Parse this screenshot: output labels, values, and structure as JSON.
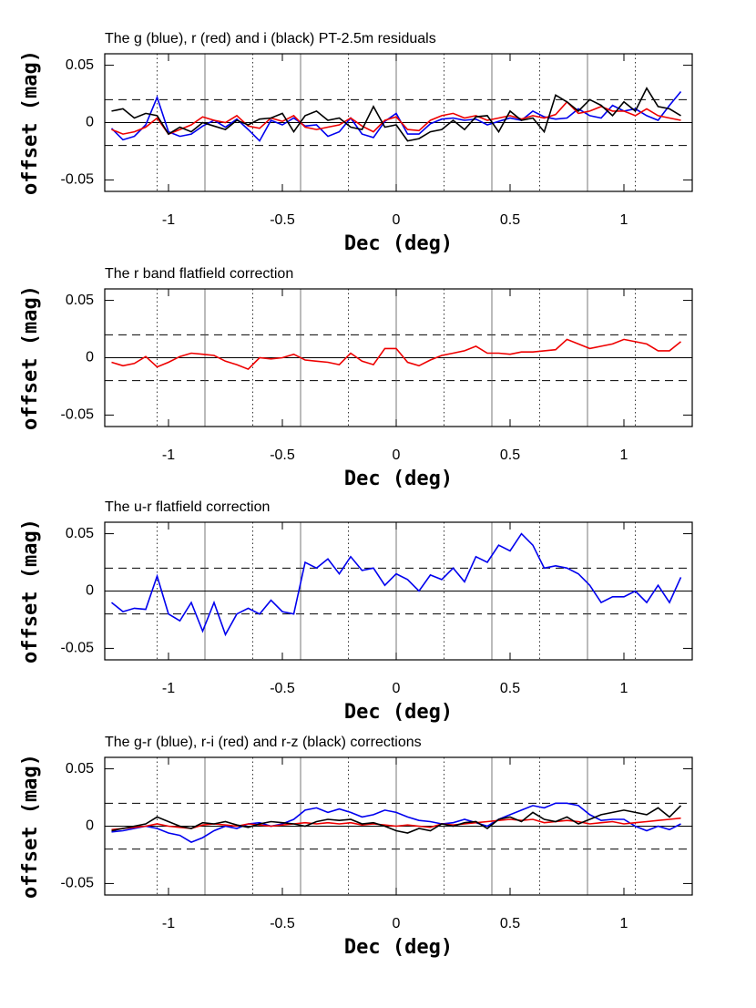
{
  "chart_data": [
    {
      "type": "line",
      "title": "The g (blue), r (red) and i (black) PT-2.5m residuals",
      "xlabel": "Dec (deg)",
      "ylabel": "offset (mag)",
      "xlim": [
        -1.28,
        1.3
      ],
      "ylim": [
        -0.06,
        0.06
      ],
      "xticks": [
        -1,
        -0.5,
        0,
        0.5,
        1
      ],
      "yticks": [
        -0.05,
        0,
        0.05
      ],
      "zero_line": true,
      "dashed_levels": [
        -0.02,
        0.02
      ],
      "solid_vlines": [
        -0.84,
        -0.42,
        0,
        0.42,
        0.84
      ],
      "dotted_vlines": [
        -1.05,
        -0.63,
        -0.21,
        0.21,
        0.63,
        1.05
      ],
      "x": [
        -1.25,
        -1.2,
        -1.15,
        -1.1,
        -1.05,
        -1,
        -0.95,
        -0.9,
        -0.85,
        -0.8,
        -0.75,
        -0.7,
        -0.65,
        -0.6,
        -0.55,
        -0.5,
        -0.45,
        -0.4,
        -0.35,
        -0.3,
        -0.25,
        -0.2,
        -0.15,
        -0.1,
        -0.05,
        0,
        0.05,
        0.1,
        0.15,
        0.2,
        0.25,
        0.3,
        0.35,
        0.4,
        0.45,
        0.5,
        0.55,
        0.6,
        0.65,
        0.7,
        0.75,
        0.8,
        0.85,
        0.9,
        0.95,
        1,
        1.05,
        1.1,
        1.15,
        1.2,
        1.25
      ],
      "series": [
        {
          "name": "g",
          "color": "#0000ee",
          "values": [
            -0.005,
            -0.015,
            -0.012,
            -0.002,
            0.022,
            -0.008,
            -0.012,
            -0.01,
            -0.003,
            0.002,
            -0.004,
            0.003,
            -0.006,
            -0.016,
            0.002,
            -0.002,
            0.004,
            -0.003,
            -0.002,
            -0.012,
            -0.008,
            0.004,
            -0.01,
            -0.013,
            0.001,
            0.008,
            -0.01,
            -0.01,
            -0.001,
            0.003,
            0.004,
            0.002,
            0.003,
            -0.002,
            0.001,
            0.004,
            0.002,
            0.01,
            0.005,
            0.003,
            0.004,
            0.012,
            0.006,
            0.004,
            0.015,
            0.01,
            0.012,
            0.006,
            0.002,
            0.015,
            0.027
          ]
        },
        {
          "name": "r",
          "color": "#ee0000",
          "values": [
            -0.006,
            -0.01,
            -0.008,
            -0.004,
            0.004,
            -0.01,
            -0.006,
            -0.002,
            0.005,
            0.002,
            0,
            0.006,
            -0.003,
            -0.005,
            0.004,
            0.001,
            0.006,
            -0.004,
            -0.006,
            -0.004,
            -0.002,
            0.004,
            -0.003,
            -0.008,
            0.002,
            0.005,
            -0.006,
            -0.007,
            0.002,
            0.006,
            0.008,
            0.004,
            0.006,
            0.002,
            0.004,
            0.006,
            0.003,
            0.006,
            0.004,
            0.007,
            0.018,
            0.008,
            0.01,
            0.014,
            0.01,
            0.01,
            0.006,
            0.012,
            0.006,
            0.004,
            0.002
          ]
        },
        {
          "name": "i",
          "color": "#000000",
          "values": [
            0.01,
            0.012,
            0.004,
            0.008,
            0.006,
            -0.01,
            -0.004,
            -0.008,
            0,
            -0.003,
            -0.006,
            0.002,
            -0.002,
            0.003,
            0.004,
            0.008,
            -0.008,
            0.006,
            0.01,
            0.002,
            0.004,
            -0.004,
            -0.006,
            0.014,
            -0.004,
            -0.002,
            -0.016,
            -0.014,
            -0.008,
            -0.006,
            0.002,
            -0.006,
            0.005,
            0.006,
            -0.008,
            0.01,
            0.002,
            0.004,
            -0.008,
            0.024,
            0.018,
            0.01,
            0.02,
            0.015,
            0.006,
            0.018,
            0.01,
            0.03,
            0.014,
            0.012,
            0.006
          ]
        }
      ]
    },
    {
      "type": "line",
      "title": "The r band flatfield correction",
      "xlabel": "Dec (deg)",
      "ylabel": "offset (mag)",
      "xlim": [
        -1.28,
        1.3
      ],
      "ylim": [
        -0.06,
        0.06
      ],
      "xticks": [
        -1,
        -0.5,
        0,
        0.5,
        1
      ],
      "yticks": [
        -0.05,
        0,
        0.05
      ],
      "zero_line": true,
      "dashed_levels": [
        -0.02,
        0.02
      ],
      "solid_vlines": [
        -0.84,
        -0.42,
        0,
        0.42,
        0.84
      ],
      "dotted_vlines": [
        -1.05,
        -0.63,
        -0.21,
        0.21,
        0.63,
        1.05
      ],
      "x": [
        -1.25,
        -1.2,
        -1.15,
        -1.1,
        -1.05,
        -1,
        -0.95,
        -0.9,
        -0.85,
        -0.8,
        -0.75,
        -0.7,
        -0.65,
        -0.6,
        -0.55,
        -0.5,
        -0.45,
        -0.4,
        -0.35,
        -0.3,
        -0.25,
        -0.2,
        -0.15,
        -0.1,
        -0.05,
        0,
        0.05,
        0.1,
        0.15,
        0.2,
        0.25,
        0.3,
        0.35,
        0.4,
        0.45,
        0.5,
        0.55,
        0.6,
        0.65,
        0.7,
        0.75,
        0.8,
        0.85,
        0.9,
        0.95,
        1,
        1.05,
        1.1,
        1.15,
        1.2,
        1.25
      ],
      "series": [
        {
          "name": "r",
          "color": "#ee0000",
          "values": [
            -0.004,
            -0.007,
            -0.005,
            0.001,
            -0.008,
            -0.004,
            0.001,
            0.004,
            0.003,
            0.002,
            -0.003,
            -0.006,
            -0.01,
            0,
            -0.001,
            0,
            0.003,
            -0.002,
            -0.003,
            -0.004,
            -0.006,
            0.004,
            -0.003,
            -0.006,
            0.008,
            0.008,
            -0.004,
            -0.007,
            -0.002,
            0.002,
            0.004,
            0.006,
            0.01,
            0.004,
            0.004,
            0.003,
            0.005,
            0.005,
            0.006,
            0.007,
            0.016,
            0.012,
            0.008,
            0.01,
            0.012,
            0.016,
            0.014,
            0.012,
            0.006,
            0.006,
            0.014
          ]
        }
      ]
    },
    {
      "type": "line",
      "title": "The u-r flatfield correction",
      "xlabel": "Dec (deg)",
      "ylabel": "offset (mag)",
      "xlim": [
        -1.28,
        1.3
      ],
      "ylim": [
        -0.06,
        0.06
      ],
      "xticks": [
        -1,
        -0.5,
        0,
        0.5,
        1
      ],
      "yticks": [
        -0.05,
        0,
        0.05
      ],
      "zero_line": true,
      "dashed_levels": [
        -0.02,
        0.02
      ],
      "solid_vlines": [
        -0.84,
        -0.42,
        0,
        0.42,
        0.84
      ],
      "dotted_vlines": [
        -1.05,
        -0.63,
        -0.21,
        0.21,
        0.63,
        1.05
      ],
      "x": [
        -1.25,
        -1.2,
        -1.15,
        -1.1,
        -1.05,
        -1,
        -0.95,
        -0.9,
        -0.85,
        -0.8,
        -0.75,
        -0.7,
        -0.65,
        -0.6,
        -0.55,
        -0.5,
        -0.45,
        -0.4,
        -0.35,
        -0.3,
        -0.25,
        -0.2,
        -0.15,
        -0.1,
        -0.05,
        0,
        0.05,
        0.1,
        0.15,
        0.2,
        0.25,
        0.3,
        0.35,
        0.4,
        0.45,
        0.5,
        0.55,
        0.6,
        0.65,
        0.7,
        0.75,
        0.8,
        0.85,
        0.9,
        0.95,
        1,
        1.05,
        1.1,
        1.15,
        1.2,
        1.25
      ],
      "series": [
        {
          "name": "u-r",
          "color": "#0000ee",
          "values": [
            -0.01,
            -0.018,
            -0.015,
            -0.016,
            0.013,
            -0.02,
            -0.026,
            -0.01,
            -0.035,
            -0.01,
            -0.038,
            -0.02,
            -0.015,
            -0.02,
            -0.008,
            -0.018,
            -0.02,
            0.025,
            0.02,
            0.028,
            0.015,
            0.03,
            0.018,
            0.02,
            0.005,
            0.015,
            0.01,
            0,
            0.014,
            0.01,
            0.02,
            0.008,
            0.03,
            0.025,
            0.04,
            0.035,
            0.05,
            0.04,
            0.02,
            0.022,
            0.02,
            0.015,
            0.005,
            -0.01,
            -0.005,
            -0.005,
            0,
            -0.01,
            0.005,
            -0.01,
            0.012
          ]
        }
      ]
    },
    {
      "type": "line",
      "title": "The g-r (blue), r-i (red) and r-z (black) corrections",
      "xlabel": "Dec (deg)",
      "ylabel": "offset (mag)",
      "xlim": [
        -1.28,
        1.3
      ],
      "ylim": [
        -0.06,
        0.06
      ],
      "xticks": [
        -1,
        -0.5,
        0,
        0.5,
        1
      ],
      "yticks": [
        -0.05,
        0,
        0.05
      ],
      "zero_line": true,
      "dashed_levels": [
        -0.02,
        0.02
      ],
      "solid_vlines": [
        -0.84,
        -0.42,
        0,
        0.42,
        0.84
      ],
      "dotted_vlines": [
        -1.05,
        -0.63,
        -0.21,
        0.21,
        0.63,
        1.05
      ],
      "x": [
        -1.25,
        -1.2,
        -1.15,
        -1.1,
        -1.05,
        -1,
        -0.95,
        -0.9,
        -0.85,
        -0.8,
        -0.75,
        -0.7,
        -0.65,
        -0.6,
        -0.55,
        -0.5,
        -0.45,
        -0.4,
        -0.35,
        -0.3,
        -0.25,
        -0.2,
        -0.15,
        -0.1,
        -0.05,
        0,
        0.05,
        0.1,
        0.15,
        0.2,
        0.25,
        0.3,
        0.35,
        0.4,
        0.45,
        0.5,
        0.55,
        0.6,
        0.65,
        0.7,
        0.75,
        0.8,
        0.85,
        0.9,
        0.95,
        1,
        1.05,
        1.1,
        1.15,
        1.2,
        1.25
      ],
      "series": [
        {
          "name": "g-r",
          "color": "#0000ee",
          "values": [
            -0.005,
            -0.004,
            -0.002,
            0,
            -0.002,
            -0.006,
            -0.008,
            -0.014,
            -0.01,
            -0.004,
            0,
            -0.002,
            0.002,
            0.003,
            0,
            0.002,
            0.006,
            0.014,
            0.016,
            0.012,
            0.015,
            0.012,
            0.008,
            0.01,
            0.014,
            0.012,
            0.008,
            0.005,
            0.004,
            0.002,
            0.003,
            0.006,
            0.003,
            0,
            0.006,
            0.01,
            0.014,
            0.018,
            0.016,
            0.02,
            0.02,
            0.018,
            0.01,
            0.005,
            0.006,
            0.006,
            0,
            -0.004,
            0,
            -0.003,
            0.002
          ]
        },
        {
          "name": "r-i",
          "color": "#ee0000",
          "values": [
            -0.003,
            -0.002,
            -0.001,
            0,
            0.002,
            0,
            -0.001,
            -0.002,
            0.001,
            0.002,
            0.001,
            0,
            0.002,
            0.001,
            0,
            0.001,
            0.002,
            0.003,
            0.002,
            0.003,
            0.002,
            0.003,
            0.001,
            0.002,
            0.001,
            0,
            0.001,
            0,
            -0.001,
            0.002,
            0.001,
            0.002,
            0.003,
            0.004,
            0.005,
            0.006,
            0.005,
            0.006,
            0.003,
            0.004,
            0.005,
            0.004,
            0.002,
            0.003,
            0.004,
            0.002,
            0.003,
            0.004,
            0.005,
            0.006,
            0.007
          ]
        },
        {
          "name": "r-z",
          "color": "#000000",
          "values": [
            -0.004,
            -0.002,
            0,
            0.002,
            0.008,
            0.004,
            0,
            -0.002,
            0.003,
            0.002,
            0.004,
            0.001,
            -0.001,
            0.002,
            0.004,
            0.003,
            0.002,
            0,
            0.004,
            0.006,
            0.005,
            0.006,
            0.002,
            0.003,
            0,
            -0.004,
            -0.006,
            -0.002,
            -0.004,
            0.002,
            0,
            0.003,
            0.004,
            -0.002,
            0.006,
            0.008,
            0.004,
            0.012,
            0.006,
            0.004,
            0.008,
            0.002,
            0.006,
            0.01,
            0.012,
            0.014,
            0.012,
            0.01,
            0.016,
            0.008,
            0.018
          ]
        }
      ]
    }
  ]
}
